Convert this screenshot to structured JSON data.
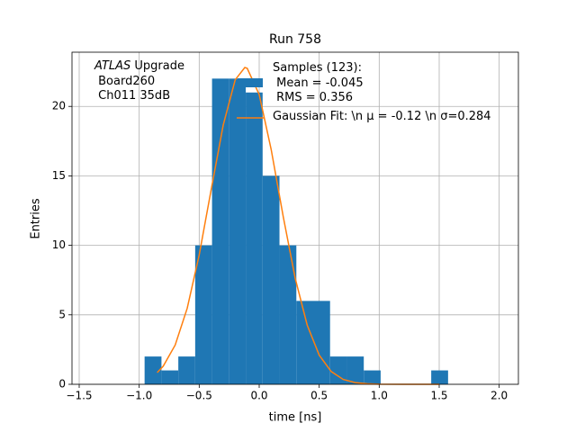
{
  "chart_data": {
    "type": "histogram",
    "title": "Run 758",
    "xlabel": "time [ns]",
    "ylabel": "Entries",
    "annotation": [
      "ATLAS",
      " Upgrade",
      " Board260",
      " Ch011 35dB"
    ],
    "name": "Samples (123):\n Mean = -0.045\n RMS = 0.356",
    "color": "#1f77b4",
    "bins": [
      -0.955,
      -0.8145,
      -0.674,
      -0.5335,
      -0.393,
      -0.2525,
      -0.112,
      0.0285,
      0.169,
      0.3095,
      0.45,
      0.5905,
      0.731,
      0.8715,
      1.012,
      1.1525,
      1.293,
      1.4335,
      1.574
    ],
    "values": [
      2,
      1,
      2,
      10,
      22,
      22,
      21,
      15,
      10,
      6,
      6,
      2,
      2,
      1,
      0,
      0,
      0,
      1
    ],
    "fit": {
      "name": "Gaussian Fit: \\n μ = -0.12 \\n σ=0.284",
      "color": "#ff7f0e",
      "x": [
        -0.85,
        -0.8,
        -0.7,
        -0.6,
        -0.5,
        -0.4,
        -0.3,
        -0.2,
        -0.12,
        -0.1,
        0.0,
        0.1,
        0.2,
        0.3,
        0.4,
        0.5,
        0.6,
        0.7,
        0.8,
        0.9,
        1.0,
        1.2,
        1.5
      ],
      "values": [
        0.84,
        1.3,
        2.83,
        5.47,
        9.31,
        14.02,
        18.65,
        21.91,
        22.8,
        22.74,
        20.85,
        16.89,
        12.08,
        7.63,
        4.26,
        2.1,
        0.92,
        0.35,
        0.12,
        0.04,
        0.01,
        0,
        0
      ]
    },
    "xlim": [
      -1.56,
      2.16
    ],
    "ylim": [
      0,
      23.9
    ],
    "xticks": [
      {
        "value": -1.5,
        "label": "−1.5"
      },
      {
        "value": -1.0,
        "label": "−1.0"
      },
      {
        "value": -0.5,
        "label": "−0.5"
      },
      {
        "value": 0,
        "label": "0.0"
      },
      0.5,
      {
        "value": 1.0,
        "label": "1.0"
      },
      1.5,
      {
        "value": 2.0,
        "label": "2.0"
      }
    ],
    "yticks": [
      0,
      5,
      10,
      15,
      20
    ],
    "grid": true
  }
}
